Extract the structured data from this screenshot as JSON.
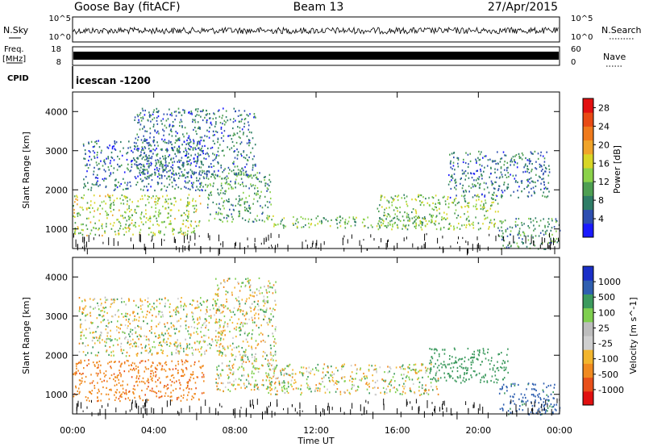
{
  "header": {
    "title": "Goose Bay (fitACF)",
    "beam": "Beam 13",
    "date": "27/Apr/2015"
  },
  "top_panels": {
    "nsky_label": "N.Sky",
    "nsky_ticks": [
      "10^5",
      "10^0"
    ],
    "nsearch_label": "N.Search",
    "nsearch_ticks": [
      "10^5",
      "10^0"
    ],
    "freq_label": "Freq.",
    "freq_unit": "[MHz]",
    "freq_ticks": [
      "18",
      "8"
    ],
    "nave_label": "Nave",
    "nave_ticks": [
      "60",
      "0"
    ],
    "cpid_label": "CPID",
    "cpid_value": "icescan -1200"
  },
  "colors": {
    "power_scale": [
      "#1a1aff",
      "#2e4fb0",
      "#2f7d67",
      "#4e9f52",
      "#8bd24a",
      "#d8d626",
      "#f0a42a",
      "#ef7a1c",
      "#e84a14",
      "#e21010"
    ],
    "velocity_scale": [
      "#e11010",
      "#e8501a",
      "#f08a20",
      "#f2b52e",
      "#cfcfcf",
      "#bdbdbd",
      "#7fcf4f",
      "#3c9a5e",
      "#2f5fb0",
      "#1a2fc8"
    ],
    "noise": "#0a0a0a"
  },
  "chart_data": [
    {
      "type": "heatmap",
      "name": "power",
      "x_ticks": [
        "00:00",
        "04:00",
        "08:00",
        "12:00",
        "16:00",
        "20:00",
        "00:00"
      ],
      "x_range_hours": [
        0,
        24
      ],
      "ylabel": "Slant Range [km]",
      "y_ticks": [
        1000,
        2000,
        3000,
        4000
      ],
      "ylim": [
        500,
        4500
      ],
      "colorbar_label": "Power [dB]",
      "colorbar_ticks": [
        "4",
        "8",
        "12",
        "16",
        "20",
        "24",
        "28"
      ],
      "colorbar_range": [
        0,
        30
      ],
      "scatter_regions": [
        {
          "t_start": 0.0,
          "t_end": 6.3,
          "range_low": 850,
          "range_high": 1900,
          "value": 14
        },
        {
          "t_start": 0.5,
          "t_end": 6.5,
          "range_low": 2000,
          "range_high": 3300,
          "value": 6
        },
        {
          "t_start": 3.0,
          "t_end": 9.0,
          "range_low": 2300,
          "range_high": 4100,
          "value": 7
        },
        {
          "t_start": 6.5,
          "t_end": 9.8,
          "range_low": 1200,
          "range_high": 2500,
          "value": 10
        },
        {
          "t_start": 9.5,
          "t_end": 17.5,
          "range_low": 1050,
          "range_high": 1350,
          "value": 12
        },
        {
          "t_start": 15.0,
          "t_end": 21.0,
          "range_low": 1000,
          "range_high": 1900,
          "value": 13
        },
        {
          "t_start": 18.5,
          "t_end": 23.5,
          "range_low": 1800,
          "range_high": 3000,
          "value": 7
        },
        {
          "t_start": 21.0,
          "t_end": 24.0,
          "range_low": 500,
          "range_high": 1300,
          "value": 9
        }
      ]
    },
    {
      "type": "heatmap",
      "name": "velocity",
      "x_ticks": [
        "00:00",
        "04:00",
        "08:00",
        "12:00",
        "16:00",
        "20:00",
        "00:00"
      ],
      "x_range_hours": [
        0,
        24
      ],
      "xlabel": "Time UT",
      "ylabel": "Slant Range [km]",
      "y_ticks": [
        1000,
        2000,
        3000,
        4000
      ],
      "ylim": [
        500,
        4500
      ],
      "colorbar_label": "Velocity [m s^-1]",
      "colorbar_ticks": [
        "1000",
        "500",
        "100",
        "25",
        "-25",
        "-100",
        "-500",
        "-1000"
      ],
      "scatter_regions": [
        {
          "t_start": 0.0,
          "t_end": 6.5,
          "range_low": 850,
          "range_high": 1900,
          "value": -400
        },
        {
          "t_start": 0.3,
          "t_end": 7.5,
          "range_low": 2000,
          "range_high": 3500,
          "value": 0
        },
        {
          "t_start": 7.0,
          "t_end": 10.0,
          "range_low": 1100,
          "range_high": 4000,
          "value": 0
        },
        {
          "t_start": 9.5,
          "t_end": 18.0,
          "range_low": 1000,
          "range_high": 1800,
          "value": 0
        },
        {
          "t_start": 17.5,
          "t_end": 21.5,
          "range_low": 1300,
          "range_high": 2200,
          "value": 300
        },
        {
          "t_start": 21.0,
          "t_end": 24.0,
          "range_low": 500,
          "range_high": 1300,
          "value": 600
        }
      ]
    }
  ]
}
